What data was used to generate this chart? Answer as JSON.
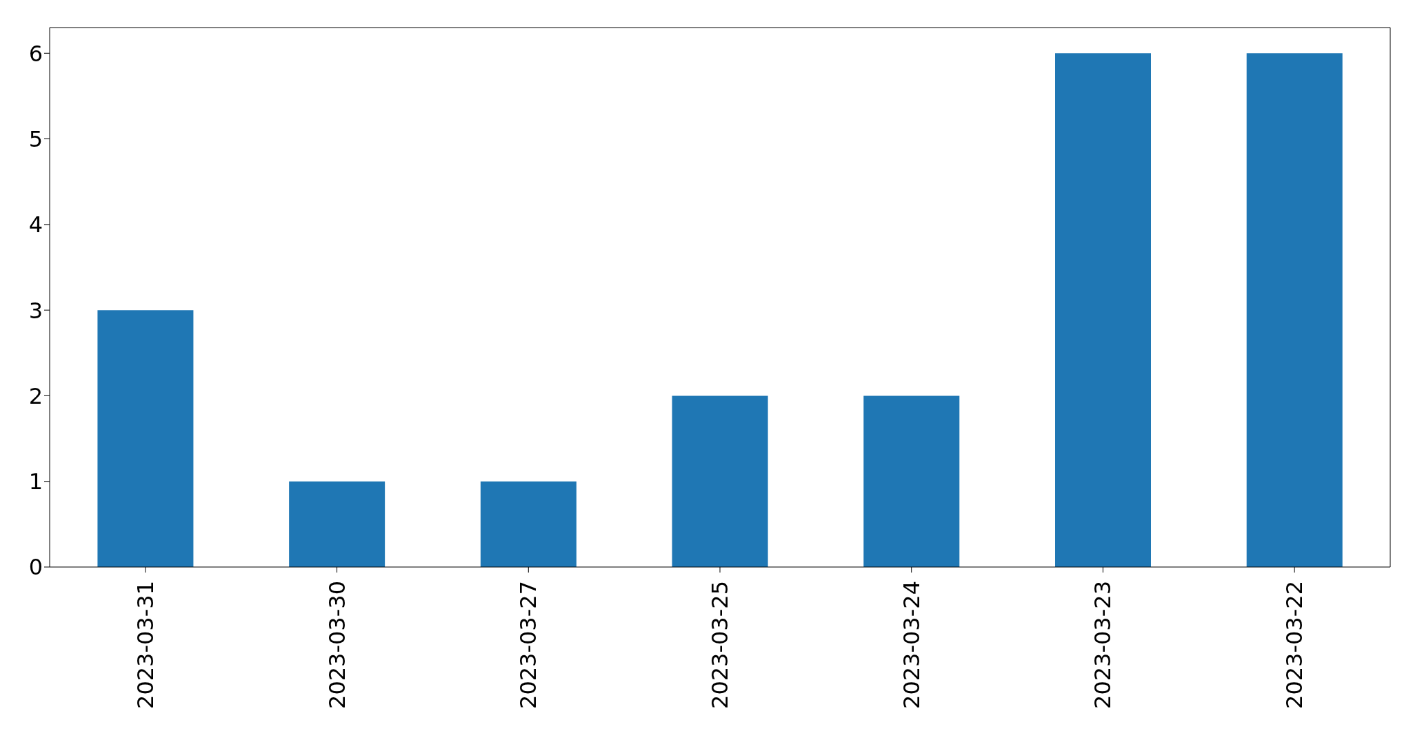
{
  "chart_data": {
    "type": "bar",
    "categories": [
      "2023-03-31",
      "2023-03-30",
      "2023-03-27",
      "2023-03-25",
      "2023-03-24",
      "2023-03-23",
      "2023-03-22"
    ],
    "values": [
      3,
      1,
      1,
      2,
      2,
      6,
      6
    ],
    "color": "#1f77b4",
    "ylim": [
      0,
      6.3
    ],
    "yticks": [
      0,
      1,
      2,
      3,
      4,
      5,
      6
    ],
    "grid": false,
    "legend": false
  }
}
